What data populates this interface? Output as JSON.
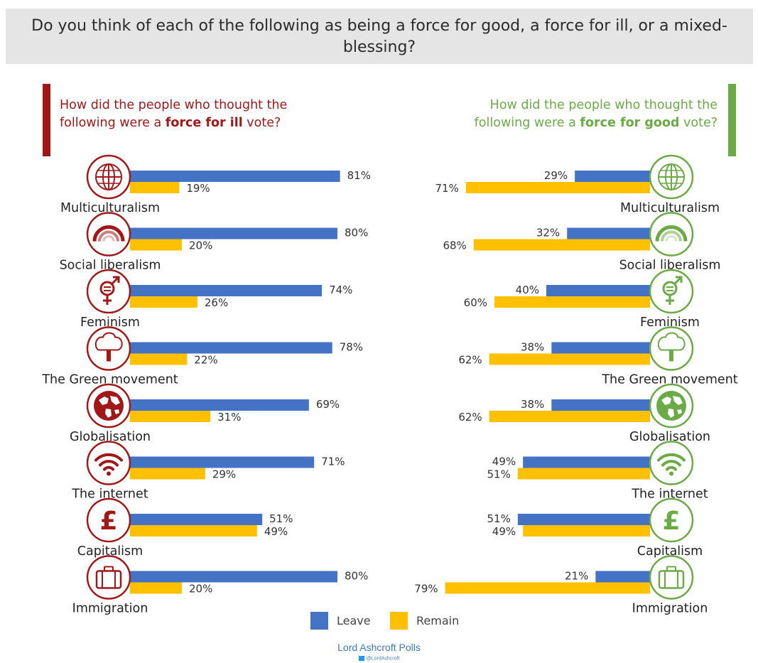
{
  "question": "Do you think of each of the following as being a force for good, a force for ill, or a mixed-blessing?",
  "left_heading": {
    "pre": "How did the people who thought the following were a ",
    "bold": "force for ill",
    "post": " vote?"
  },
  "right_heading": {
    "pre": "How did the people who thought the following were a ",
    "bold": "force for good",
    "post": " vote?"
  },
  "colors": {
    "leave": "#4472c4",
    "remain": "#ffc000",
    "ill": "#a01818",
    "good": "#6aab45",
    "label": "#222222",
    "value": "#333333"
  },
  "legend": [
    {
      "label": "Leave",
      "color": "#4472c4"
    },
    {
      "label": "Remain",
      "color": "#ffc000"
    }
  ],
  "source": "Lord Ashcroft Polls",
  "twitter": "@LordAshcroft",
  "chart_data": [
    {
      "type": "bar",
      "panel": "force for ill",
      "categories": [
        "Multiculturalism",
        "Social liberalism",
        "Feminism",
        "The Green movement",
        "Globalisation",
        "The internet",
        "Capitalism",
        "Immigration"
      ],
      "icons": [
        "globe-icon",
        "rainbow-icon",
        "gender-symbol-icon",
        "tree-icon",
        "world-map-icon",
        "wifi-icon",
        "pound-icon",
        "suitcase-icon"
      ],
      "series": [
        {
          "name": "Leave",
          "values": [
            81,
            80,
            74,
            78,
            69,
            71,
            51,
            80
          ]
        },
        {
          "name": "Remain",
          "values": [
            19,
            20,
            26,
            22,
            31,
            29,
            49,
            20
          ]
        }
      ],
      "value_labels": {
        "Leave": [
          "81%",
          "80%",
          "74%",
          "78%",
          "69%",
          "71%",
          "51%",
          "80%"
        ],
        "Remain": [
          "19%",
          "20%",
          "26%",
          "22%",
          "31%",
          "29%",
          "49%",
          "20%"
        ]
      },
      "orientation": "horizontal",
      "xlim": [
        0,
        100
      ]
    },
    {
      "type": "bar",
      "panel": "force for good",
      "categories": [
        "Multiculturalism",
        "Social liberalism",
        "Feminism",
        "The Green movement",
        "Globalisation",
        "The internet",
        "Capitalism",
        "Immigration"
      ],
      "icons": [
        "globe-icon",
        "rainbow-icon",
        "gender-symbol-icon",
        "tree-icon",
        "world-map-icon",
        "wifi-icon",
        "pound-icon",
        "suitcase-icon"
      ],
      "series": [
        {
          "name": "Leave",
          "values": [
            29,
            32,
            40,
            38,
            38,
            49,
            51,
            21
          ]
        },
        {
          "name": "Remain",
          "values": [
            71,
            68,
            60,
            62,
            62,
            51,
            49,
            79
          ]
        }
      ],
      "value_labels": {
        "Leave": [
          "29%",
          "32%",
          "40%",
          "38%",
          "38%",
          "49%",
          "51%",
          "21%"
        ],
        "Remain": [
          "71%",
          "68%",
          "60%",
          "62%",
          "62%",
          "51%",
          "49%",
          "79%"
        ]
      },
      "orientation": "horizontal",
      "xlim": [
        0,
        100
      ]
    }
  ]
}
